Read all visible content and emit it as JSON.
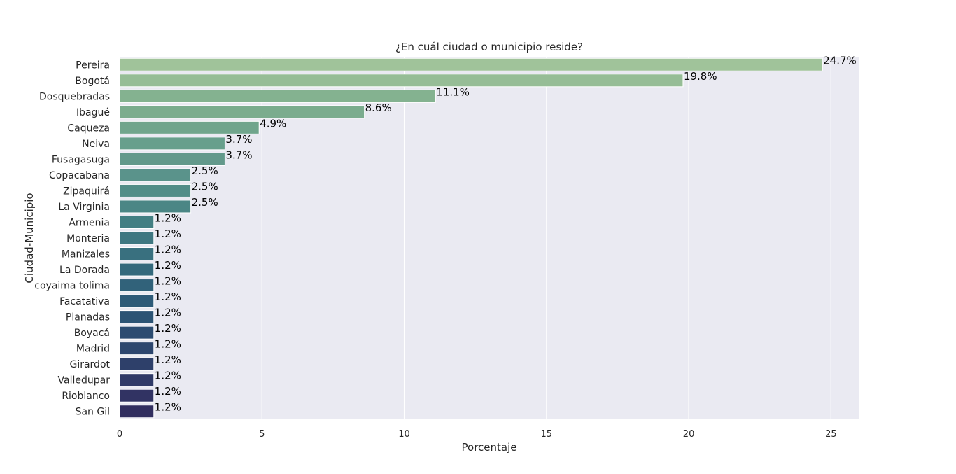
{
  "chart_data": {
    "type": "bar",
    "orientation": "horizontal",
    "title": "¿En cuál ciudad o municipio reside?",
    "xlabel": "Porcentaje",
    "ylabel": "Ciudad-Municipio",
    "xlim": [
      0,
      26
    ],
    "xticks": [
      0,
      5,
      10,
      15,
      20,
      25
    ],
    "grid": true,
    "background_color": "#eaeaf2",
    "categories": [
      "Pereira",
      "Bogotá",
      "Dosquebradas",
      "Ibagué",
      "Caqueza",
      "Neiva",
      "Fusagasuga",
      "Copacabana",
      "Zipaquirá",
      "La Virginia",
      "Armenia",
      "Monteria",
      "Manizales",
      "La Dorada",
      "coyaima tolima",
      "Facatativa",
      "Planadas",
      "Boyacá",
      "Madrid",
      "Girardot",
      "Valledupar",
      "Rioblanco",
      "San Gil"
    ],
    "values": [
      24.7,
      19.8,
      11.1,
      8.6,
      4.9,
      3.7,
      3.7,
      2.5,
      2.5,
      2.5,
      1.2,
      1.2,
      1.2,
      1.2,
      1.2,
      1.2,
      1.2,
      1.2,
      1.2,
      1.2,
      1.2,
      1.2,
      1.2
    ],
    "data_labels": [
      "24.7%",
      "19.8%",
      "11.1%",
      "8.6%",
      "4.9%",
      "3.7%",
      "3.7%",
      "2.5%",
      "2.5%",
      "2.5%",
      "1.2%",
      "1.2%",
      "1.2%",
      "1.2%",
      "1.2%",
      "1.2%",
      "1.2%",
      "1.2%",
      "1.2%",
      "1.2%",
      "1.2%",
      "1.2%",
      "1.2%"
    ],
    "colors": [
      "#a0c39a",
      "#96bd96",
      "#84b290",
      "#7bac8e",
      "#70a58c",
      "#679f8c",
      "#63998b",
      "#5a938b",
      "#528d88",
      "#4b8685",
      "#437f83",
      "#3f7781",
      "#39707f",
      "#34697c",
      "#31627a",
      "#2e5b78",
      "#2c5474",
      "#2c4c71",
      "#2d466e",
      "#2e406a",
      "#303a67",
      "#313363",
      "#312e5f"
    ]
  }
}
